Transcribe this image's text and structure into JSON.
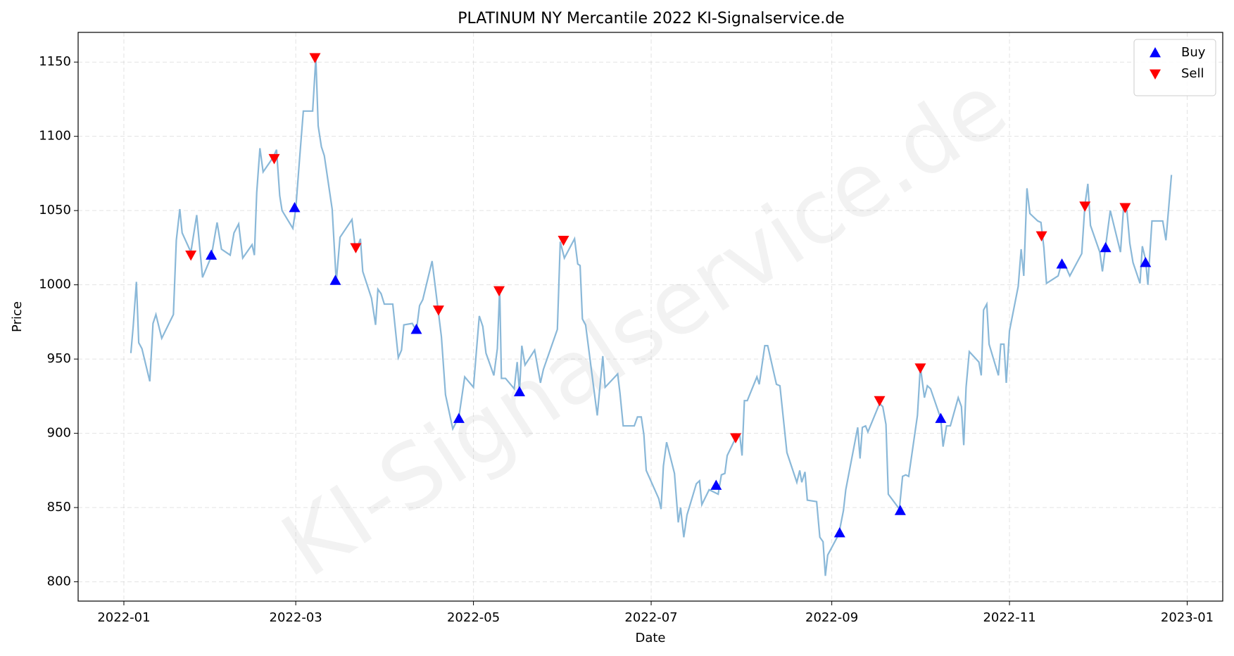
{
  "chart_data": {
    "type": "line",
    "title": "PLATINUM NY Mercantile 2022 KI-Signalservice.de",
    "watermark": "KI-Signalservice.de",
    "x_label": "Date",
    "y_label": "Price",
    "grid": true,
    "legend": "upper right",
    "xlim": [
      -15.7,
      377.2
    ],
    "xticks": [
      {
        "value": 0,
        "label": "2022-01"
      },
      {
        "value": 59,
        "label": "2022-03"
      },
      {
        "value": 120,
        "label": "2022-05"
      },
      {
        "value": 181,
        "label": "2022-07"
      },
      {
        "value": 243,
        "label": "2022-09"
      },
      {
        "value": 304,
        "label": "2022-11"
      },
      {
        "value": 365,
        "label": "2023-01"
      }
    ],
    "ylim": [
      787,
      1170
    ],
    "yticks": [
      800,
      850,
      900,
      950,
      1000,
      1050,
      1100,
      1150
    ],
    "series": [
      {
        "color": "#8ab8d8",
        "x": [
          2.4,
          3.2,
          4.3,
          5.1,
          6.2,
          8.9,
          10,
          11,
          13,
          17,
          18,
          19.2,
          20,
          23,
          25,
          27,
          30,
          32,
          33.5,
          36.5,
          37.8,
          39.4,
          40.8,
          44,
          44.8,
          45.6,
          46.7,
          47.8,
          51.3,
          52.4,
          53.5,
          54.3,
          58,
          59,
          60.2,
          61.6,
          64.8,
          65.9,
          66.7,
          67.8,
          68.8,
          71.5,
          72.9,
          74.2,
          78.3,
          79.6,
          81.2,
          82,
          85,
          86.4,
          87.2,
          88.3,
          89.4,
          92.3,
          94.2,
          95.3,
          96.1,
          99,
          100.4,
          101.5,
          102.6,
          105.8,
          108,
          109,
          110.4,
          112.9,
          115,
          117,
          120,
          122,
          123.2,
          124.3,
          127,
          128.2,
          129,
          129.6,
          131,
          134,
          135,
          135.8,
          136.6,
          137.7,
          141,
          143,
          144,
          148.8,
          149.8,
          151.2,
          154.7,
          155.8,
          156.6,
          157.4,
          158.5,
          162.5,
          164.4,
          165.2,
          169.5,
          170.3,
          171.4,
          175.2,
          176.3,
          177.6,
          178.5,
          179.3,
          183.6,
          184.4,
          185.2,
          186.3,
          189,
          190.3,
          191.1,
          192.2,
          193.3,
          196.5,
          197.6,
          198.4,
          200.9,
          204,
          205.1,
          206.3,
          207.1,
          209.8,
          211.4,
          212.2,
          213,
          214,
          217.3,
          218.1,
          220,
          221,
          224,
          225.2,
          227.6,
          231,
          232,
          232.7,
          233.8,
          234.6,
          237.8,
          238.9,
          240,
          240.8,
          241.6,
          245.4,
          247,
          247.8,
          251.9,
          252.7,
          253.5,
          254.6,
          255.4,
          259.4,
          260.5,
          261.6,
          262.4,
          266.2,
          267.3,
          268.4,
          269.4,
          272.4,
          273.4,
          274.8,
          275.8,
          276.9,
          280.4,
          281.2,
          282.4,
          283.7,
          286.4,
          287.5,
          288.3,
          289.1,
          290.2,
          293.5,
          294.3,
          295.1,
          296.2,
          297,
          300.2,
          301,
          302.1,
          302.9,
          304,
          307,
          308,
          308.9,
          310,
          311,
          313.7,
          314.8,
          315.8,
          316.7,
          320.7,
          321.8,
          322.9,
          324.7,
          328.8,
          329.9,
          330.9,
          331.8,
          335,
          335.9,
          337,
          338.6,
          342.1,
          343.2,
          344.3,
          345.3,
          346.4,
          348.8,
          349.6,
          350.7,
          351.5,
          352.9,
          356.6,
          357.7,
          359.6
        ],
        "values": [
          954,
          972,
          1002,
          961,
          957,
          935,
          974,
          980,
          964,
          980,
          1030,
          1051,
          1035,
          1022,
          1047,
          1005,
          1019,
          1042,
          1024,
          1020,
          1035,
          1041,
          1018,
          1027,
          1020,
          1062,
          1092,
          1076,
          1086,
          1091,
          1060,
          1050,
          1038,
          1051,
          1082,
          1117,
          1117,
          1153,
          1107,
          1093,
          1087,
          1051,
          1002,
          1032,
          1044,
          1022,
          1031,
          1009,
          991,
          973,
          997,
          994,
          987,
          987,
          951,
          956,
          973,
          974,
          969,
          986,
          990,
          1016,
          981,
          965,
          926,
          903,
          911,
          938,
          931,
          979,
          972,
          954,
          939,
          957,
          998,
          937,
          937,
          930,
          948,
          928,
          959,
          946,
          956,
          934,
          943,
          970,
          1029,
          1018,
          1031,
          1014,
          1013,
          977,
          973,
          912,
          952,
          931,
          940,
          927,
          905,
          905,
          911,
          911,
          899,
          875,
          856,
          849,
          878,
          894,
          873,
          840,
          850,
          830,
          845,
          866,
          868,
          852,
          862,
          859,
          872,
          873,
          885,
          896,
          899,
          885,
          922,
          922,
          938,
          933,
          959,
          959,
          933,
          932,
          887,
          867,
          875,
          867,
          874,
          855,
          854,
          830,
          827,
          804,
          818,
          832,
          848,
          862,
          904,
          883,
          904,
          905,
          901,
          920,
          918,
          906,
          859,
          849,
          871,
          872,
          871,
          912,
          945,
          924,
          932,
          930,
          910,
          891,
          905,
          905,
          924,
          918,
          892,
          931,
          955,
          948,
          939,
          983,
          987,
          960,
          939,
          960,
          960,
          934,
          969,
          999,
          1024,
          1006,
          1065,
          1048,
          1043,
          1042,
          1025,
          1001,
          1006,
          1014,
          1014,
          1006,
          1021,
          1054,
          1068,
          1040,
          1022,
          1009,
          1026,
          1050,
          1022,
          1053,
          1050,
          1028,
          1015,
          1001,
          1026,
          1017,
          1000,
          1043,
          1043,
          1030,
          1074
        ]
      },
      {
        "name": "Buy",
        "color": "#0000ff",
        "marker": "^",
        "x": [
          30,
          58.6,
          72.6,
          100.4,
          115,
          135.8,
          203.3,
          245.7,
          266.5,
          280.4,
          322,
          337,
          350.7
        ],
        "values": [
          1020,
          1052,
          1003,
          970,
          910,
          928,
          865,
          833,
          848,
          910,
          1014,
          1025,
          1015
        ]
      },
      {
        "name": "Sell",
        "color": "#ff0000",
        "marker": "v",
        "x": [
          23,
          51.6,
          65.6,
          79.6,
          108,
          128.8,
          150.9,
          210,
          259.4,
          273.4,
          315,
          329.9,
          343.7
        ],
        "values": [
          1020,
          1085,
          1153,
          1025,
          983,
          996,
          1030,
          897,
          922,
          944,
          1033,
          1053,
          1052
        ]
      }
    ]
  }
}
